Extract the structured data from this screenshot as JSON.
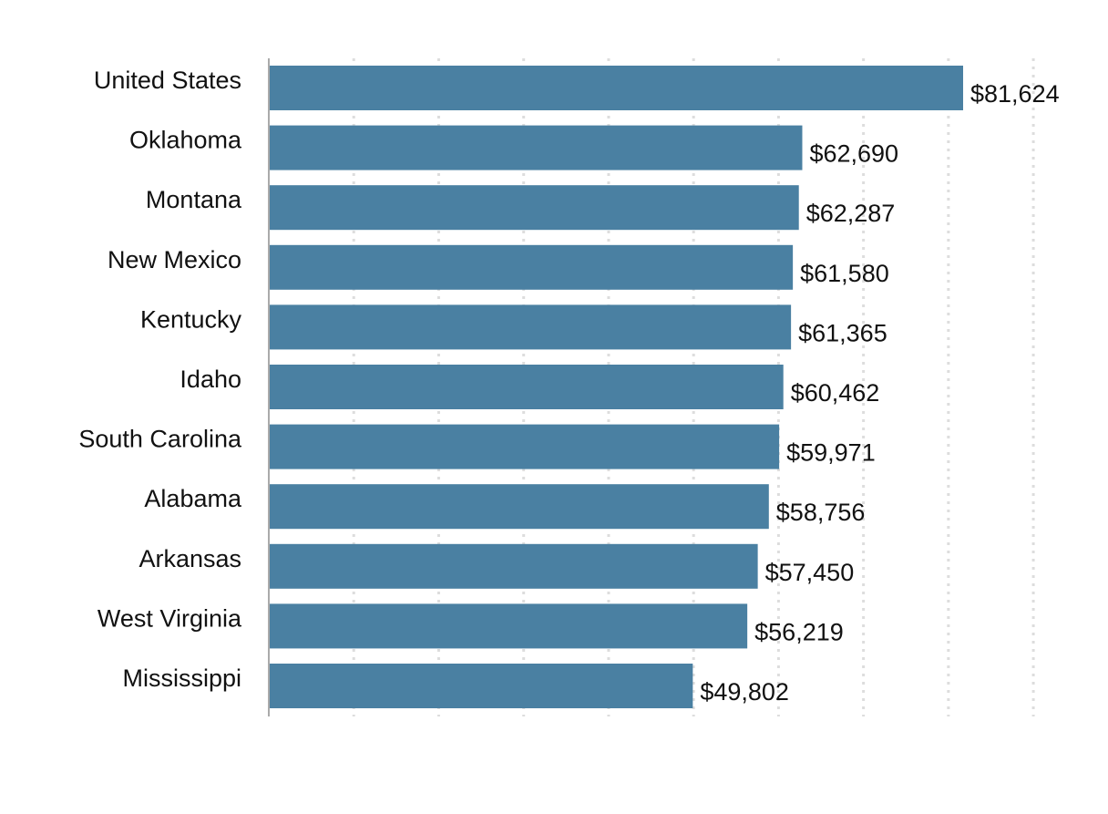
{
  "chart_data": {
    "type": "bar",
    "orientation": "horizontal",
    "categories": [
      "United States",
      "Oklahoma",
      "Montana",
      "New Mexico",
      "Kentucky",
      "Idaho",
      "South Carolina",
      "Alabama",
      "Arkansas",
      "West Virginia",
      "Mississippi"
    ],
    "values": [
      81624,
      62690,
      62287,
      61580,
      61365,
      60462,
      59971,
      58756,
      57450,
      56219,
      49802
    ],
    "value_labels": [
      "$81,624",
      "$62,690",
      "$62,287",
      "$61,580",
      "$61,365",
      "$60,462",
      "$59,971",
      "$58,756",
      "$57,450",
      "$56,219",
      "$49,802"
    ],
    "title": "",
    "xlabel": "",
    "ylabel": "",
    "xlim": [
      0,
      90000
    ],
    "grid": "vertical dotted",
    "legend": "none",
    "colors": {
      "bar": "#4a80a2",
      "grid": "#dddddd",
      "axis": "#aaaaaa",
      "text": "#111111"
    }
  }
}
